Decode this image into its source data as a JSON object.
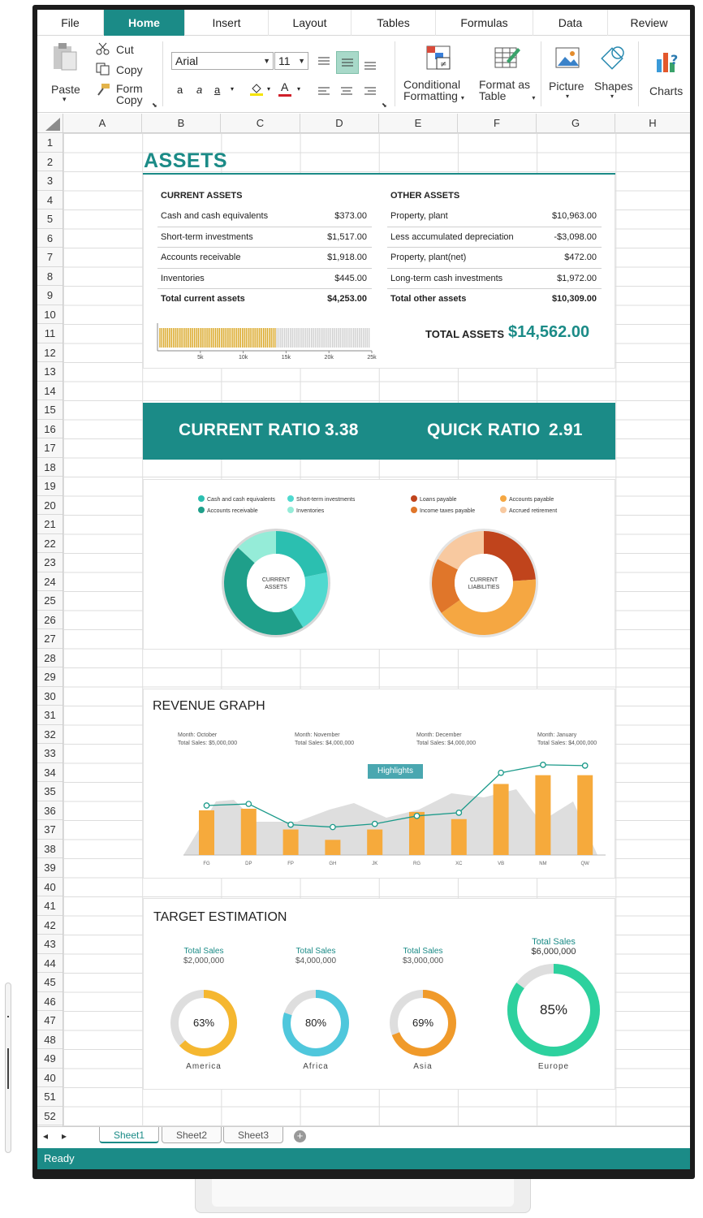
{
  "tabs": [
    "File",
    "Home",
    "Insert",
    "Layout",
    "Tables",
    "Formulas",
    "Data",
    "Review"
  ],
  "active_tab": "Home",
  "ribbon": {
    "paste": "Paste",
    "cut": "Cut",
    "copy": "Copy",
    "form_copy_1": "Form",
    "form_copy_2": "Copy",
    "font_name": "Arial",
    "font_size": "11",
    "bold_a": "a",
    "italic_a": "a",
    "underline_a": "a",
    "font_color_a": "A",
    "cond_fmt_1": "Conditional",
    "cond_fmt_2": "Formatting",
    "format_table_1": "Format as",
    "format_table_2": "Table",
    "picture": "Picture",
    "shapes": "Shapes",
    "charts": "Charts"
  },
  "columns": [
    "A",
    "B",
    "C",
    "D",
    "E",
    "F",
    "G",
    "H"
  ],
  "rows": [
    "1",
    "2",
    "3",
    "4",
    "5",
    "6",
    "7",
    "8",
    "9",
    "10",
    "11",
    "12",
    "13",
    "14",
    "15",
    "16",
    "17",
    "18",
    "19",
    "20",
    "21",
    "22",
    "23",
    "24",
    "25",
    "26",
    "27",
    "28",
    "29",
    "30",
    "31",
    "32",
    "33",
    "34",
    "35",
    "36",
    "37",
    "38",
    "39",
    "40",
    "41",
    "42",
    "43",
    "44",
    "45",
    "46",
    "47",
    "48",
    "49",
    "40",
    "51",
    "52"
  ],
  "assets": {
    "title": "ASSETS",
    "current": {
      "heading": "CURRENT ASSETS",
      "rows": [
        {
          "label": "Cash and cash equivalents",
          "value": "$373.00"
        },
        {
          "label": "Short-term investments",
          "value": "$1,517.00"
        },
        {
          "label": "Accounts receivable",
          "value": "$1,918.00"
        },
        {
          "label": "Inventories",
          "value": "$445.00"
        }
      ],
      "total_label": "Total current assets",
      "total_value": "$4,253.00"
    },
    "other": {
      "heading": "OTHER ASSETS",
      "rows": [
        {
          "label": "Property, plant",
          "value": "$10,963.00"
        },
        {
          "label": "Less accumulated depreciation",
          "value": "-$3,098.00"
        },
        {
          "label": "Property, plant(net)",
          "value": "$472.00"
        },
        {
          "label": "Long-term cash investments",
          "value": "$1,972.00"
        }
      ],
      "total_label": "Total other assets",
      "total_value": "$10,309.00"
    },
    "bar_ticks": [
      "5k",
      "10k",
      "15k",
      "20k",
      "25k"
    ],
    "bar_fill_fraction": 0.55,
    "total_label": "TOTAL ASSETS",
    "total_value": "$14,562.00"
  },
  "ratios": {
    "current_label": "CURRENT RATIO",
    "current_value": "3.38",
    "quick_label": "QUICK RATIO",
    "quick_value": "2.91"
  },
  "donuts": {
    "assets_center_1": "CURRENT",
    "assets_center_2": "ASSETS",
    "liab_center_1": "CURRENT",
    "liab_center_2": "LIABILITIES",
    "assets_legend": [
      {
        "label": "Cash and cash equivalents",
        "color": "#2bbfb0"
      },
      {
        "label": "Short-term investments",
        "color": "#4fd9cf"
      },
      {
        "label": "Accounts receivable",
        "color": "#1f9f8a"
      },
      {
        "label": "Inventories",
        "color": "#95ecd8"
      }
    ],
    "liab_legend": [
      {
        "label": "Loans payable",
        "color": "#c0441c"
      },
      {
        "label": "Accounts payable",
        "color": "#f5a742"
      },
      {
        "label": "Income taxes payable",
        "color": "#e0762a"
      },
      {
        "label": "Accrued retirement",
        "color": "#f8c9a0"
      }
    ]
  },
  "revenue": {
    "title": "REVENUE GRAPH",
    "callouts": [
      {
        "month": "Month: October",
        "sales": "Total Sales: $5,000,000"
      },
      {
        "month": "Month: November",
        "sales": "Total Sales: $4,000,000"
      },
      {
        "month": "Month: December",
        "sales": "Total Sales: $4,000,000"
      },
      {
        "month": "Month: January",
        "sales": "Total Sales: $4,000,000"
      }
    ],
    "highlight": "Highlights"
  },
  "target": {
    "title": "TARGET ESTIMATION",
    "total_label": "Total Sales",
    "items": [
      {
        "sales": "$2,000,000",
        "percent": "63%",
        "region": "America"
      },
      {
        "sales": "$4,000,000",
        "percent": "80%",
        "region": "Africa"
      },
      {
        "sales": "$3,000,000",
        "percent": "69%",
        "region": "Asia"
      },
      {
        "sales": "$6,000,000",
        "percent": "85%",
        "region": "Europe"
      }
    ]
  },
  "sheets": [
    "Sheet1",
    "Sheet2",
    "Sheet3"
  ],
  "status": "Ready",
  "chart_data": [
    {
      "type": "bar",
      "categories": [
        "FG",
        "DP",
        "FP",
        "GH",
        "JK",
        "RG",
        "XC",
        "VB",
        "NM",
        "QW"
      ],
      "series": [
        {
          "values": [
            56,
            58,
            32,
            19,
            32,
            54,
            45,
            89,
            100,
            100
          ]
        },
        {
          "values": [
            62,
            64,
            38,
            35,
            39,
            49,
            53,
            103,
            113,
            112
          ]
        }
      ],
      "ylim": [
        0,
        120
      ]
    },
    {
      "type": "pie",
      "labels": [
        "Cash and cash equivalents",
        "Short-term investments",
        "Accounts receivable",
        "Inventories"
      ],
      "values": [
        20,
        18,
        42,
        12
      ]
    },
    {
      "type": "pie",
      "labels": [
        "Loans payable",
        "Accounts payable",
        "Income taxes payable",
        "Accrued retirement"
      ],
      "values": [
        22,
        38,
        16,
        16
      ]
    },
    {
      "type": "pie",
      "labels": [
        "America",
        "Africa",
        "Asia",
        "Europe"
      ],
      "values": [
        63,
        80,
        69,
        85
      ]
    }
  ]
}
